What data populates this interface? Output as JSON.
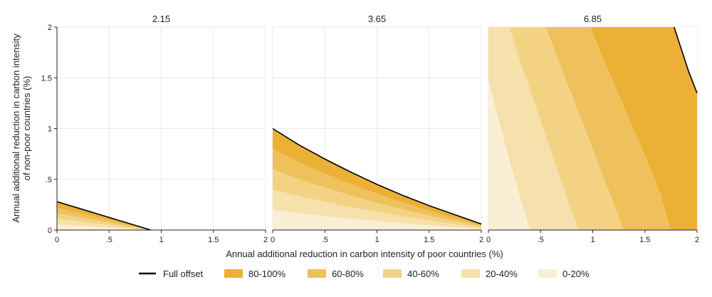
{
  "chart_data": {
    "type": "area",
    "xlabel": "Annual additional reduction in carbon intensity of poor countries (%)",
    "ylabel_lines": [
      "Annual additional reduction in carbon intensity",
      "of non-poor countries (%)"
    ],
    "xlim": [
      0,
      2
    ],
    "ylim": [
      0,
      2
    ],
    "x_ticks": [
      "0",
      ".5",
      "1",
      "1.5",
      "2"
    ],
    "y_ticks": [
      "0",
      ".5",
      "1",
      "1.5",
      "2"
    ],
    "grid": true,
    "legend_position": "bottom",
    "legend": [
      {
        "label": "Full offset",
        "kind": "line",
        "color": "#000000"
      },
      {
        "label": "80-100%",
        "kind": "fill",
        "color": "#ebb035"
      },
      {
        "label": "60-80%",
        "kind": "fill",
        "color": "#efc15c"
      },
      {
        "label": "40-60%",
        "kind": "fill",
        "color": "#f3d283"
      },
      {
        "label": "20-40%",
        "kind": "fill",
        "color": "#f6e0ab"
      },
      {
        "label": "0-20%",
        "kind": "fill",
        "color": "#faeed4"
      }
    ],
    "panels": [
      {
        "title": "2.15",
        "full_offset": {
          "x": [
            0,
            0.9
          ],
          "y": [
            0.28,
            0
          ]
        },
        "bands": [
          {
            "label": "0-20%",
            "x": [
              0,
              0.9
            ],
            "y": [
              0.056,
              0
            ]
          },
          {
            "label": "20-40%",
            "x": [
              0,
              0.9
            ],
            "y": [
              0.112,
              0
            ]
          },
          {
            "label": "40-60%",
            "x": [
              0,
              0.9
            ],
            "y": [
              0.168,
              0
            ]
          },
          {
            "label": "60-80%",
            "x": [
              0,
              0.9
            ],
            "y": [
              0.224,
              0
            ]
          },
          {
            "label": "80-100%",
            "x": [
              0,
              0.9
            ],
            "y": [
              0.28,
              0
            ]
          }
        ]
      },
      {
        "title": "3.65",
        "full_offset": {
          "x": [
            0,
            0.25,
            0.5,
            0.75,
            1.0,
            1.25,
            1.5,
            1.75,
            2.0
          ],
          "y": [
            1.0,
            0.84,
            0.7,
            0.57,
            0.45,
            0.34,
            0.24,
            0.15,
            0.06
          ]
        },
        "bands": [
          {
            "label": "0-20%",
            "x": [
              0,
              0.25,
              0.5,
              0.75,
              1.0,
              1.25,
              1.5,
              1.75,
              2.0
            ],
            "y": [
              0.2,
              0.168,
              0.14,
              0.114,
              0.09,
              0.068,
              0.048,
              0.03,
              0.012
            ]
          },
          {
            "label": "20-40%",
            "x": [
              0,
              0.25,
              0.5,
              0.75,
              1.0,
              1.25,
              1.5,
              1.75,
              2.0
            ],
            "y": [
              0.4,
              0.336,
              0.28,
              0.228,
              0.18,
              0.136,
              0.096,
              0.06,
              0.024
            ]
          },
          {
            "label": "40-60%",
            "x": [
              0,
              0.25,
              0.5,
              0.75,
              1.0,
              1.25,
              1.5,
              1.75,
              2.0
            ],
            "y": [
              0.6,
              0.504,
              0.42,
              0.342,
              0.27,
              0.204,
              0.144,
              0.09,
              0.036
            ]
          },
          {
            "label": "60-80%",
            "x": [
              0,
              0.25,
              0.5,
              0.75,
              1.0,
              1.25,
              1.5,
              1.75,
              2.0
            ],
            "y": [
              0.8,
              0.672,
              0.56,
              0.456,
              0.36,
              0.272,
              0.192,
              0.12,
              0.048
            ]
          },
          {
            "label": "80-100%",
            "x": [
              0,
              0.25,
              0.5,
              0.75,
              1.0,
              1.25,
              1.5,
              1.75,
              2.0
            ],
            "y": [
              1.0,
              0.84,
              0.7,
              0.57,
              0.45,
              0.34,
              0.24,
              0.15,
              0.06
            ]
          }
        ]
      },
      {
        "title": "6.85",
        "full_offset": {
          "x": [
            1.78,
            1.85,
            1.92,
            2.0
          ],
          "y": [
            2.0,
            1.78,
            1.56,
            1.35
          ]
        },
        "band_order": [
          "0-20%",
          "20-40%",
          "40-60%",
          "60-80%",
          "80-100%"
        ],
        "boundaries": [
          {
            "x": [
              0,
              0.1,
              0.2,
              0.3,
              0.4
            ],
            "y": [
              1.48,
              1.08,
              0.7,
              0.34,
              0.0
            ]
          },
          {
            "x": [
              0.2,
              0.3,
              0.4,
              0.5,
              0.6,
              0.7,
              0.8,
              0.87
            ],
            "y": [
              2.0,
              1.68,
              1.38,
              1.08,
              0.78,
              0.48,
              0.18,
              0.0
            ]
          },
          {
            "x": [
              0.55,
              0.7,
              0.85,
              1.0,
              1.15,
              1.3
            ],
            "y": [
              2.0,
              1.6,
              1.2,
              0.8,
              0.4,
              0.0
            ]
          },
          {
            "x": [
              0.98,
              1.1,
              1.2,
              1.35,
              1.5,
              1.65,
              1.75
            ],
            "y": [
              2.0,
              1.7,
              1.46,
              1.1,
              0.74,
              0.36,
              0.0
            ]
          }
        ]
      }
    ]
  }
}
